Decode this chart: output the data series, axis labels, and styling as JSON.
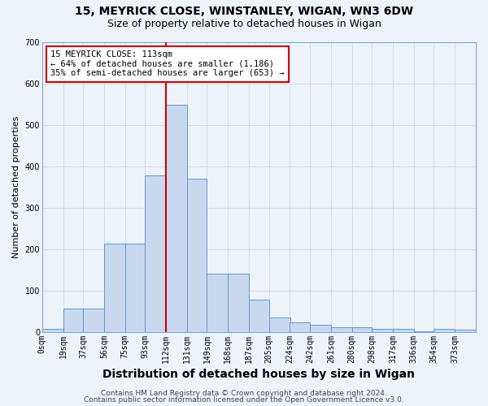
{
  "title1": "15, MEYRICK CLOSE, WINSTANLEY, WIGAN, WN3 6DW",
  "title2": "Size of property relative to detached houses in Wigan",
  "xlabel": "Distribution of detached houses by size in Wigan",
  "ylabel": "Number of detached properties",
  "bar_labels": [
    "0sqm",
    "19sqm",
    "37sqm",
    "56sqm",
    "75sqm",
    "93sqm",
    "112sqm",
    "131sqm",
    "149sqm",
    "168sqm",
    "187sqm",
    "205sqm",
    "224sqm",
    "242sqm",
    "261sqm",
    "280sqm",
    "298sqm",
    "317sqm",
    "336sqm",
    "354sqm",
    "373sqm"
  ],
  "bar_values": [
    7,
    55,
    55,
    213,
    213,
    378,
    548,
    370,
    140,
    140,
    78,
    35,
    22,
    17,
    11,
    11,
    6,
    6,
    2,
    7,
    5
  ],
  "bar_edges": [
    0,
    19,
    37,
    56,
    75,
    93,
    112,
    131,
    149,
    168,
    187,
    205,
    224,
    242,
    261,
    280,
    298,
    317,
    336,
    354,
    373,
    392
  ],
  "bar_color": "#c8d8ee",
  "bar_edge_color": "#5b9bd5",
  "vline_x": 112,
  "vline_color": "#cc0000",
  "ylim": [
    0,
    700
  ],
  "yticks": [
    0,
    100,
    200,
    300,
    400,
    500,
    600,
    700
  ],
  "annotation_title": "15 MEYRICK CLOSE: 113sqm",
  "annotation_line1": "← 64% of detached houses are smaller (1,186)",
  "annotation_line2": "35% of semi-detached houses are larger (653) →",
  "footer1": "Contains HM Land Registry data © Crown copyright and database right 2024.",
  "footer2": "Contains public sector information licensed under the Open Government Licence v3.0.",
  "bg_color": "#eef2f9",
  "grid_color": "#d0d8e8",
  "title1_fontsize": 10,
  "title2_fontsize": 9,
  "xlabel_fontsize": 10,
  "ylabel_fontsize": 8,
  "tick_fontsize": 7,
  "footer_fontsize": 6.5,
  "ann_fontsize": 7.5
}
